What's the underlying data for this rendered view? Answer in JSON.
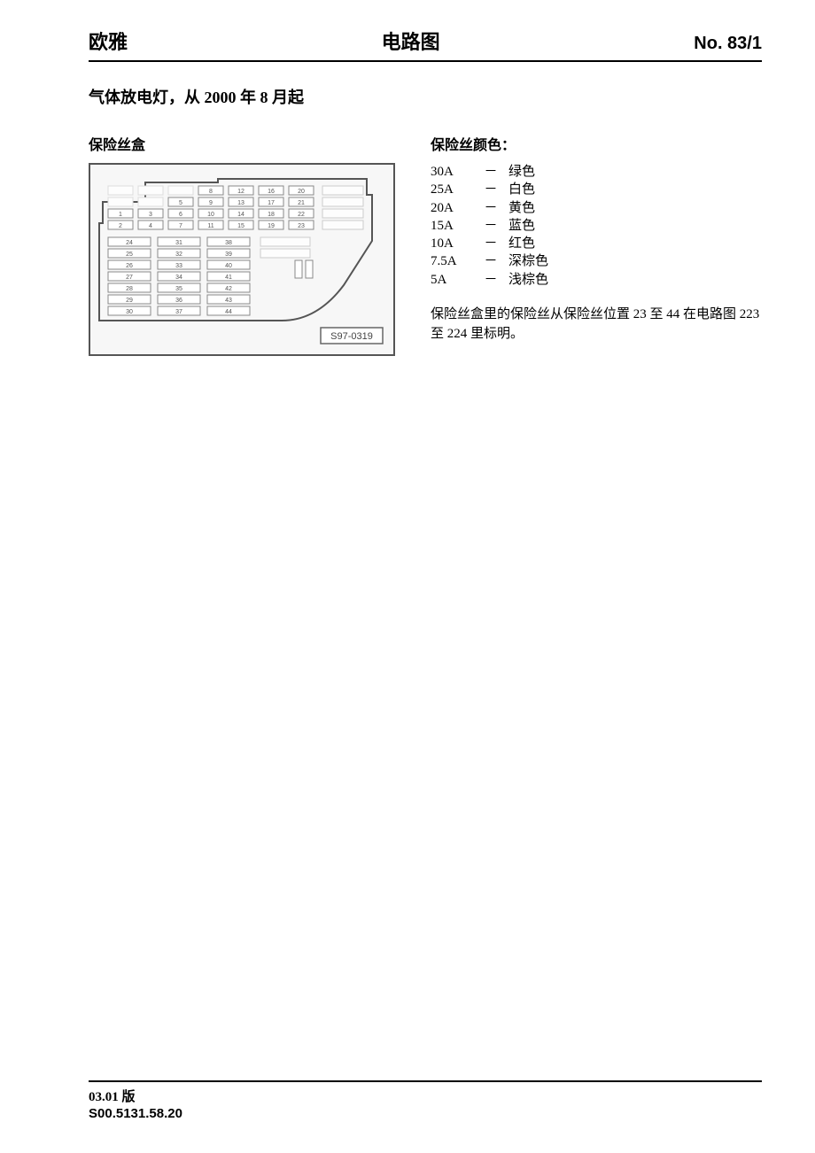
{
  "header": {
    "left": "欧雅",
    "center": "电路图",
    "right": "No. 83/1"
  },
  "subtitle": "气体放电灯，从 2000 年 8 月起",
  "fusebox": {
    "title": "保险丝盒",
    "diagram_label": "S97-0319",
    "outline_color": "#555555",
    "cell_border": "#888888",
    "cell_bg": "#ffffff",
    "frame_bg": "#f7f7f7",
    "top_rows": [
      [
        null,
        null,
        null,
        "8",
        "12",
        "16",
        "20"
      ],
      [
        null,
        null,
        "5",
        "9",
        "13",
        "17",
        "21"
      ],
      [
        "1",
        "3",
        "6",
        "10",
        "14",
        "18",
        "22"
      ],
      [
        "2",
        "4",
        "7",
        "11",
        "15",
        "19",
        "23"
      ]
    ],
    "bottom_rows": [
      [
        "24",
        "31",
        "38"
      ],
      [
        "25",
        "32",
        "39"
      ],
      [
        "26",
        "33",
        "40"
      ],
      [
        "27",
        "34",
        "41"
      ],
      [
        "28",
        "35",
        "42"
      ],
      [
        "29",
        "36",
        "43"
      ],
      [
        "30",
        "37",
        "44"
      ]
    ]
  },
  "colors_section": {
    "title": "保险丝颜色：",
    "rows": [
      {
        "amp": "30A",
        "dash": "－",
        "color": "绿色"
      },
      {
        "amp": "25A",
        "dash": "－",
        "color": "白色"
      },
      {
        "amp": "20A",
        "dash": "－",
        "color": "黄色"
      },
      {
        "amp": "15A",
        "dash": "－",
        "color": "蓝色"
      },
      {
        "amp": "10A",
        "dash": "－",
        "color": "红色"
      },
      {
        "amp": "7.5A",
        "dash": "－",
        "color": "深棕色"
      },
      {
        "amp": "5A",
        "dash": "－",
        "color": "浅棕色"
      }
    ],
    "note": "保险丝盒里的保险丝从保险丝位置 23 至 44 在电路图 223 至 224 里标明。"
  },
  "footer": {
    "line1": "03.01 版",
    "line2": "S00.5131.58.20"
  },
  "style": {
    "text_color": "#000000",
    "bg_color": "#ffffff",
    "rule_color": "#000000",
    "font_body": 15,
    "font_header": 22,
    "font_subtitle": 18,
    "font_section": 16,
    "fuse_cell_font": 7
  }
}
